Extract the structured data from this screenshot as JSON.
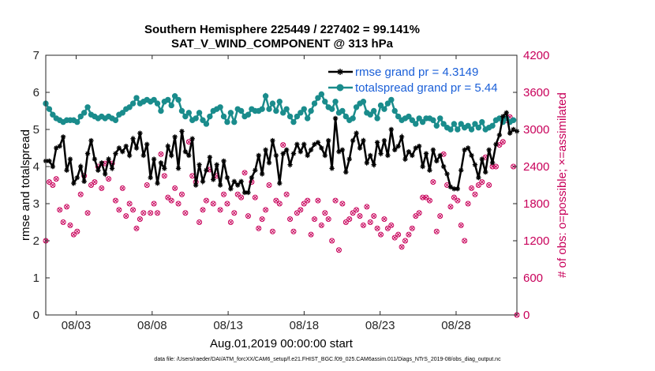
{
  "chart_data": {
    "type": "line",
    "title_line1": "Southern Hemisphere 225449 / 227402 = 99.141%",
    "title_line2": "SAT_V_WIND_COMPONENT @ 313 hPa",
    "xlabel": "Aug.01,2019 00:00:00 start",
    "ylabel_left": "rmse and totalspread",
    "ylabel_right": "# of obs: o=possible; ×=assimilated",
    "footer": "data file: /Users/raeder/DAI/ATM_forcXX/CAM6_setup/f.e21.FHIST_BGC.f09_025.CAM6assim.011/Diags_NTrS_2019-08/obs_diag_output.nc",
    "x_ticks": [
      "08/03",
      "08/08",
      "08/13",
      "08/18",
      "08/23",
      "08/28"
    ],
    "x_tick_days": [
      3,
      8,
      13,
      18,
      23,
      28
    ],
    "xlim": [
      1,
      32
    ],
    "ylim_left": [
      0,
      7
    ],
    "yticks_left": [
      "0",
      "1",
      "2",
      "3",
      "4",
      "5",
      "6",
      "7"
    ],
    "ylim_right": [
      0,
      4200
    ],
    "yticks_right": [
      "0",
      "600",
      "1200",
      "1800",
      "2400",
      "3000",
      "3600",
      "4200"
    ],
    "colors": {
      "rmse": "#000000",
      "spread": "#1a8c8c",
      "obs": "#c8005a",
      "legend_text": "#1a5fd8"
    },
    "series": [
      {
        "name": "rmse grand pr = 4.3149",
        "marker": "asterisk",
        "values": [
          4.15,
          4.15,
          4.0,
          4.5,
          4.55,
          4.8,
          3.9,
          4.2,
          3.55,
          3.7,
          4.0,
          3.6,
          4.35,
          4.7,
          4.2,
          3.9,
          4.1,
          3.8,
          4.2,
          3.95,
          4.35,
          4.5,
          4.4,
          4.55,
          4.3,
          4.75,
          4.5,
          4.9,
          4.3,
          4.6,
          3.7,
          4.2,
          3.55,
          4.1,
          3.95,
          4.55,
          4.3,
          4.8,
          3.95,
          4.95,
          4.4,
          4.3,
          4.75,
          3.5,
          4.05,
          3.6,
          3.9,
          4.25,
          3.65,
          4.05,
          3.5,
          4.15,
          3.7,
          3.4,
          3.6,
          3.5,
          3.6,
          3.3,
          3.3,
          3.7,
          3.9,
          4.3,
          3.8,
          4.45,
          4.1,
          4.7,
          4.3,
          3.55,
          4.35,
          4.45,
          4.05,
          4.35,
          4.6,
          4.4,
          4.6,
          4.3,
          4.45,
          4.6,
          4.65,
          4.5,
          4.3,
          4.7,
          3.95,
          5.3,
          4.4,
          4.45,
          3.85,
          4.2,
          4.7,
          4.9,
          4.5,
          4.7,
          4.1,
          4.3,
          4.05,
          4.65,
          4.35,
          4.7,
          4.3,
          5.0,
          4.45,
          4.55,
          4.8,
          4.2,
          4.4,
          4.3,
          4.5,
          4.55,
          4.0,
          4.35,
          3.9,
          4.45,
          4.15,
          4.3,
          4.0,
          3.8,
          3.45,
          3.4,
          3.4,
          3.9,
          4.45,
          4.5,
          4.3,
          4.05,
          3.7,
          4.2,
          3.85,
          4.45,
          4.1,
          4.6,
          4.85,
          5.35,
          5.45,
          4.9,
          5.0,
          4.95
        ]
      },
      {
        "name": "totalspread grand pr = 5.44",
        "marker": "circle",
        "values": [
          5.7,
          5.55,
          5.4,
          5.3,
          5.25,
          5.2,
          5.25,
          5.25,
          5.25,
          5.2,
          5.35,
          5.45,
          5.6,
          5.4,
          5.35,
          5.3,
          5.35,
          5.3,
          5.35,
          5.3,
          5.25,
          5.4,
          5.45,
          5.55,
          5.6,
          5.7,
          5.85,
          5.7,
          5.75,
          5.8,
          5.75,
          5.8,
          5.7,
          5.5,
          5.75,
          5.8,
          5.65,
          5.9,
          5.8,
          5.5,
          5.35,
          5.45,
          5.25,
          5.3,
          5.45,
          5.25,
          5.15,
          5.35,
          5.5,
          5.55,
          5.6,
          5.35,
          5.2,
          5.45,
          5.2,
          5.55,
          5.5,
          5.35,
          5.4,
          5.55,
          5.5,
          5.5,
          5.55,
          5.9,
          5.55,
          5.7,
          5.5,
          5.75,
          5.45,
          5.55,
          5.35,
          5.2,
          5.35,
          5.45,
          5.55,
          5.3,
          5.5,
          5.7,
          5.85,
          5.95,
          5.75,
          5.6,
          5.55,
          5.75,
          5.45,
          5.5,
          5.35,
          5.25,
          5.3,
          5.6,
          5.7,
          5.75,
          5.45,
          5.4,
          5.5,
          5.3,
          5.65,
          5.55,
          5.7,
          5.8,
          5.5,
          5.35,
          5.25,
          5.3,
          5.35,
          5.25,
          5.15,
          5.3,
          5.2,
          5.3,
          5.3,
          5.25,
          5.1,
          5.3,
          5.15,
          5.05,
          5.0,
          5.15,
          5.0,
          5.15,
          5.05,
          5.1,
          5.0,
          5.15,
          5.05,
          5.2,
          5.0,
          5.05,
          5.1,
          5.25,
          5.3,
          5.2,
          5.3,
          5.2,
          5.25
        ]
      },
      {
        "name": "obs assimilated",
        "marker": "x",
        "axis": "right",
        "values": [
          1200,
          2150,
          2100,
          2200,
          1700,
          1500,
          1750,
          1450,
          1300,
          1350,
          1950,
          2250,
          1650,
          2100,
          2150,
          2400,
          2050,
          2450,
          2200,
          2450,
          1850,
          1700,
          2050,
          1600,
          1800,
          1700,
          1400,
          1550,
          1650,
          2100,
          1650,
          1800,
          1650,
          2600,
          2250,
          1900,
          1850,
          2050,
          1800,
          1950,
          1650,
          2800,
          2250,
          2150,
          1500,
          1700,
          1850,
          2350,
          1800,
          2250,
          1700,
          1950,
          1800,
          1500,
          1650,
          1950,
          1900,
          2300,
          1600,
          2150,
          1900,
          1400,
          1550,
          1700,
          2100,
          1350,
          1850,
          1800,
          2750,
          1950,
          1550,
          1350,
          1650,
          1700,
          1800,
          1850,
          1300,
          1550,
          1850,
          1450,
          1650,
          1550,
          1200,
          1850,
          1050,
          1800,
          1500,
          1550,
          1650,
          1700,
          1600,
          1450,
          1750,
          1500,
          1600,
          1400,
          1300,
          1550,
          1400,
          1450,
          1250,
          1300,
          1100,
          1200,
          1300,
          1400,
          1600,
          1650,
          1900,
          1900,
          1850,
          2150,
          1350,
          1600,
          2600,
          2100,
          1750,
          1900,
          1850,
          1450,
          1200,
          1800,
          2050,
          1950,
          2100,
          2150,
          2550,
          2100,
          2400,
          2400,
          2750,
          2800,
          3150,
          3200,
          2400,
          0
        ]
      }
    ],
    "legend": [
      "rmse grand pr = 4.3149",
      "totalspread grand pr = 5.44"
    ],
    "legend_position": "top-right"
  }
}
